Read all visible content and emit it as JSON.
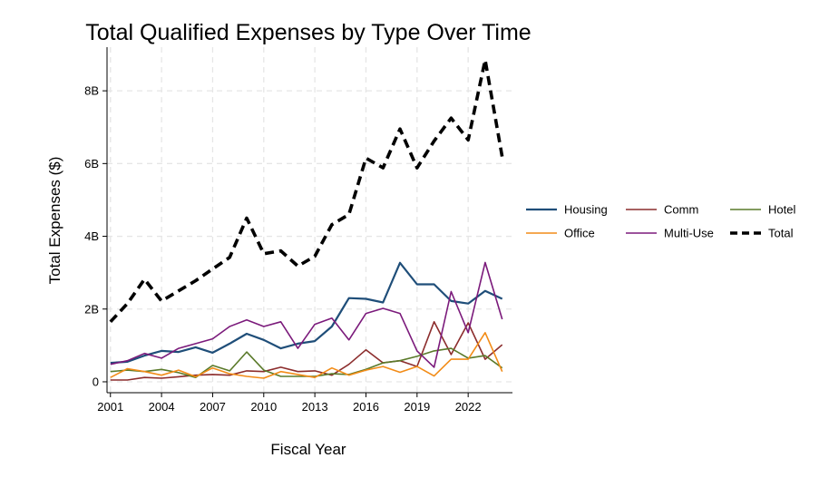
{
  "chart_data": {
    "type": "line",
    "title": "Total Qualified Expenses by Type Over Time",
    "xlabel": "Fiscal Year",
    "ylabel": "Total Expenses ($)",
    "x": [
      2001,
      2002,
      2003,
      2004,
      2005,
      2006,
      2007,
      2008,
      2009,
      2010,
      2011,
      2012,
      2013,
      2014,
      2015,
      2016,
      2017,
      2018,
      2019,
      2020,
      2021,
      2022,
      2023,
      2024
    ],
    "xlim": [
      2000.8,
      2024.6
    ],
    "ylim": [
      -0.3,
      9.2
    ],
    "xticks": [
      2001,
      2004,
      2007,
      2010,
      2013,
      2016,
      2019,
      2022
    ],
    "xtick_labels": [
      "2001",
      "2004",
      "2007",
      "2010",
      "2013",
      "2016",
      "2019",
      "2022"
    ],
    "yticks": [
      0,
      2,
      4,
      6,
      8
    ],
    "ytick_labels": [
      "0",
      "2B",
      "4B",
      "6B",
      "8B"
    ],
    "grid": true,
    "legend_position": "right",
    "series": [
      {
        "name": "Housing",
        "color": "#1f4e79",
        "style": "solid",
        "values": [
          0.52,
          0.55,
          0.72,
          0.85,
          0.82,
          0.95,
          0.8,
          1.05,
          1.32,
          1.15,
          0.92,
          1.05,
          1.12,
          1.52,
          2.3,
          2.28,
          2.18,
          3.27,
          2.68,
          2.68,
          2.22,
          2.15,
          2.5,
          2.28
        ]
      },
      {
        "name": "Comm",
        "color": "#8c2d2d",
        "style": "solid",
        "values": [
          0.05,
          0.05,
          0.12,
          0.1,
          0.14,
          0.18,
          0.2,
          0.18,
          0.3,
          0.28,
          0.4,
          0.28,
          0.3,
          0.18,
          0.48,
          0.88,
          0.52,
          0.58,
          0.42,
          1.65,
          0.75,
          1.62,
          0.62,
          1.02
        ]
      },
      {
        "name": "Hotel",
        "color": "#5a7a2a",
        "style": "solid",
        "values": [
          0.28,
          0.32,
          0.28,
          0.34,
          0.25,
          0.12,
          0.45,
          0.3,
          0.82,
          0.32,
          0.15,
          0.15,
          0.15,
          0.22,
          0.2,
          0.34,
          0.52,
          0.58,
          0.7,
          0.85,
          0.92,
          0.65,
          0.72,
          0.38
        ]
      },
      {
        "name": "Office",
        "color": "#f28c18",
        "style": "solid",
        "values": [
          0.12,
          0.36,
          0.28,
          0.18,
          0.32,
          0.14,
          0.38,
          0.22,
          0.15,
          0.1,
          0.28,
          0.2,
          0.12,
          0.38,
          0.18,
          0.32,
          0.42,
          0.26,
          0.42,
          0.16,
          0.62,
          0.62,
          1.35,
          0.28
        ]
      },
      {
        "name": "Multi-Use",
        "color": "#7b1a7b",
        "style": "solid",
        "values": [
          0.48,
          0.58,
          0.78,
          0.65,
          0.92,
          1.05,
          1.18,
          1.52,
          1.7,
          1.52,
          1.65,
          0.92,
          1.58,
          1.75,
          1.15,
          1.88,
          2.02,
          1.88,
          0.85,
          0.4,
          2.48,
          1.35,
          3.28,
          1.72
        ]
      },
      {
        "name": "Total",
        "color": "#000000",
        "style": "dashed",
        "values": [
          1.65,
          2.15,
          2.82,
          2.22,
          2.5,
          2.78,
          3.1,
          3.42,
          4.5,
          3.52,
          3.6,
          3.18,
          3.45,
          4.32,
          4.6,
          6.15,
          5.88,
          6.95,
          5.88,
          6.62,
          7.25,
          6.65,
          8.85,
          6.18
        ]
      }
    ]
  }
}
